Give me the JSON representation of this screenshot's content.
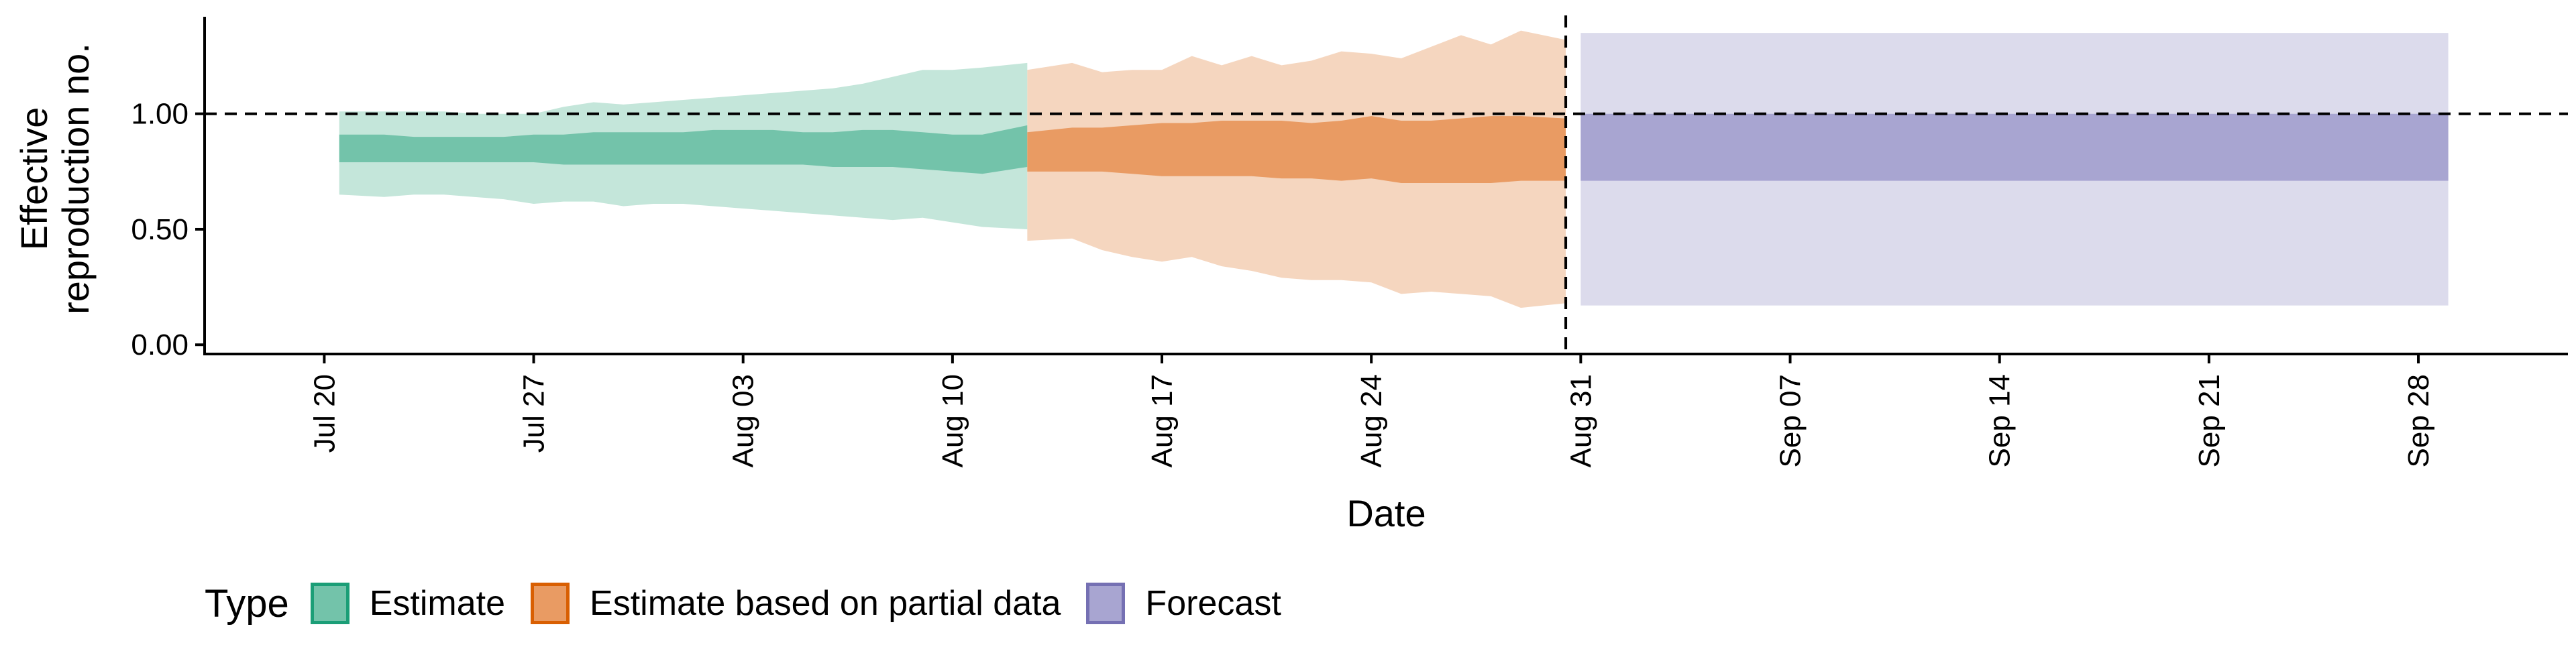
{
  "chart_data": {
    "type": "area",
    "xlabel": "Date",
    "ylabel": [
      "Effective",
      "reproduction no."
    ],
    "ylim": [
      -0.04,
      1.42
    ],
    "y_ticks": [
      0.0,
      0.5,
      1.0
    ],
    "y_tick_labels": [
      "0.00",
      "0.50",
      "1.00"
    ],
    "x_range": [
      "2020-07-16",
      "2020-10-03"
    ],
    "x_ticks": [
      "2020-07-20",
      "2020-07-27",
      "2020-08-03",
      "2020-08-10",
      "2020-08-17",
      "2020-08-24",
      "2020-08-31",
      "2020-09-07",
      "2020-09-14",
      "2020-09-21",
      "2020-09-28"
    ],
    "x_tick_labels": [
      "Jul 20",
      "Jul 27",
      "Aug 03",
      "Aug 10",
      "Aug 17",
      "Aug 24",
      "Aug 31",
      "Sep 07",
      "Sep 14",
      "Sep 21",
      "Sep 28"
    ],
    "reference_hline": 1.0,
    "reference_vline": "2020-08-30",
    "grid": false,
    "legend_position": "bottom-left",
    "legend_title": "Type",
    "colors": {
      "Estimate": {
        "inner": "#73c3aa",
        "outer": "#c4e6da",
        "border": "#1b9e77"
      },
      "Estimate based on partial data": {
        "inner": "#e99b63",
        "outer": "#f5d6bf",
        "border": "#d95f02"
      },
      "Forecast": {
        "inner": "#a8a5d1",
        "outer": "#dcdbec",
        "border": "#7570b3"
      }
    },
    "series": [
      {
        "name": "Estimate",
        "x": [
          "2020-07-21",
          "2020-07-22",
          "2020-07-23",
          "2020-07-24",
          "2020-07-25",
          "2020-07-26",
          "2020-07-27",
          "2020-07-28",
          "2020-07-29",
          "2020-07-30",
          "2020-07-31",
          "2020-08-01",
          "2020-08-02",
          "2020-08-03",
          "2020-08-04",
          "2020-08-05",
          "2020-08-06",
          "2020-08-07",
          "2020-08-08",
          "2020-08-09",
          "2020-08-10",
          "2020-08-11",
          "2020-08-12"
        ],
        "inner_low": [
          0.79,
          0.79,
          0.79,
          0.79,
          0.79,
          0.79,
          0.79,
          0.78,
          0.78,
          0.78,
          0.78,
          0.78,
          0.78,
          0.78,
          0.78,
          0.78,
          0.77,
          0.77,
          0.77,
          0.76,
          0.75,
          0.74,
          0.77
        ],
        "inner_high": [
          0.91,
          0.91,
          0.9,
          0.9,
          0.9,
          0.9,
          0.91,
          0.91,
          0.92,
          0.92,
          0.92,
          0.92,
          0.93,
          0.93,
          0.93,
          0.92,
          0.92,
          0.93,
          0.93,
          0.92,
          0.91,
          0.91,
          0.95
        ],
        "outer_low": [
          0.65,
          0.64,
          0.65,
          0.65,
          0.64,
          0.63,
          0.61,
          0.62,
          0.62,
          0.6,
          0.61,
          0.61,
          0.6,
          0.59,
          0.58,
          0.57,
          0.56,
          0.55,
          0.54,
          0.55,
          0.53,
          0.51,
          0.5
        ],
        "outer_high": [
          1.01,
          1.01,
          1.01,
          1.01,
          1.0,
          1.0,
          1.0,
          1.03,
          1.05,
          1.04,
          1.05,
          1.06,
          1.07,
          1.08,
          1.09,
          1.1,
          1.11,
          1.13,
          1.16,
          1.19,
          1.19,
          1.2,
          1.22
        ]
      },
      {
        "name": "Estimate based on partial data",
        "x": [
          "2020-08-13",
          "2020-08-14",
          "2020-08-15",
          "2020-08-16",
          "2020-08-17",
          "2020-08-18",
          "2020-08-19",
          "2020-08-20",
          "2020-08-21",
          "2020-08-22",
          "2020-08-23",
          "2020-08-24",
          "2020-08-25",
          "2020-08-26",
          "2020-08-27",
          "2020-08-28",
          "2020-08-29",
          "2020-08-30"
        ],
        "inner_low": [
          0.75,
          0.75,
          0.75,
          0.74,
          0.73,
          0.73,
          0.73,
          0.73,
          0.72,
          0.72,
          0.71,
          0.72,
          0.7,
          0.7,
          0.7,
          0.7,
          0.71,
          0.71
        ],
        "inner_high": [
          0.92,
          0.94,
          0.94,
          0.95,
          0.96,
          0.96,
          0.97,
          0.97,
          0.97,
          0.96,
          0.97,
          0.99,
          0.97,
          0.97,
          0.98,
          0.99,
          0.99,
          0.98
        ],
        "outer_low": [
          0.45,
          0.46,
          0.41,
          0.38,
          0.36,
          0.38,
          0.34,
          0.32,
          0.29,
          0.28,
          0.28,
          0.27,
          0.22,
          0.23,
          0.22,
          0.21,
          0.16,
          0.18
        ],
        "outer_high": [
          1.19,
          1.22,
          1.18,
          1.19,
          1.19,
          1.25,
          1.21,
          1.25,
          1.21,
          1.23,
          1.27,
          1.26,
          1.24,
          1.29,
          1.34,
          1.3,
          1.36,
          1.32
        ]
      },
      {
        "name": "Forecast",
        "x": [
          "2020-08-31",
          "2020-09-29"
        ],
        "inner_low": [
          0.71,
          0.71
        ],
        "inner_high": [
          1.0,
          1.0
        ],
        "outer_low": [
          0.17,
          0.17
        ],
        "outer_high": [
          1.35,
          1.35
        ]
      }
    ]
  }
}
